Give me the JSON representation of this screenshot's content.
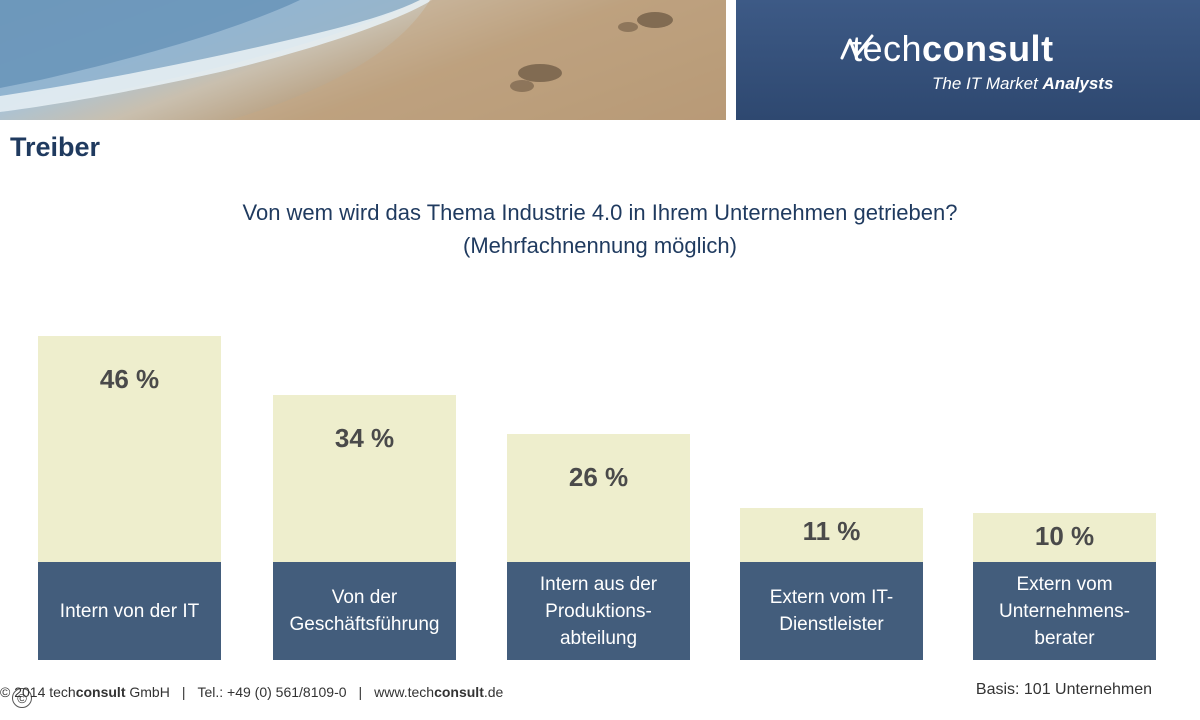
{
  "brand": {
    "name_light": "tech",
    "name_bold": "consult",
    "tagline_light": "The IT Market ",
    "tagline_bold": "Analysts",
    "colors": {
      "header_bg": "#2e4870",
      "bar_value_fill": "#eeeecd",
      "bar_label_fill": "#435d7c",
      "title": "#1f3a5f"
    }
  },
  "slide": {
    "title": "Treiber",
    "question_line1": "Von wem wird das Thema Industrie 4.0 in Ihrem Unternehmen getrieben?",
    "question_line2": "(Mehrfachnennung möglich)"
  },
  "chart_data": {
    "type": "bar",
    "title": "Von wem wird das Thema Industrie 4.0 in Ihrem Unternehmen getrieben?",
    "subtitle": "(Mehrfachnennung möglich)",
    "categories": [
      "Intern von der IT",
      "Von der\nGeschäftsführung",
      "Intern aus der\nProduktions-\nabteilung",
      "Extern vom IT-\nDienstleister",
      "Extern vom\nUnternehmens-\nberater"
    ],
    "values": [
      46,
      34,
      26,
      11,
      10
    ],
    "value_labels": [
      "46 %",
      "34 %",
      "26 %",
      "11 %",
      "10 %"
    ],
    "unit": "%",
    "ylim": [
      0,
      46
    ],
    "grid": false,
    "legend": "none"
  },
  "footer": {
    "copyright_prefix": "© 2014 tech",
    "copyright_bold": "consult",
    "copyright_suffix": " GmbH",
    "phone": "Tel.: +49 (0) 561/8109-0",
    "web_prefix": "www.tech",
    "web_bold": "consult",
    "web_suffix": ".de",
    "basis": "Basis: 101 Unternehmen"
  }
}
